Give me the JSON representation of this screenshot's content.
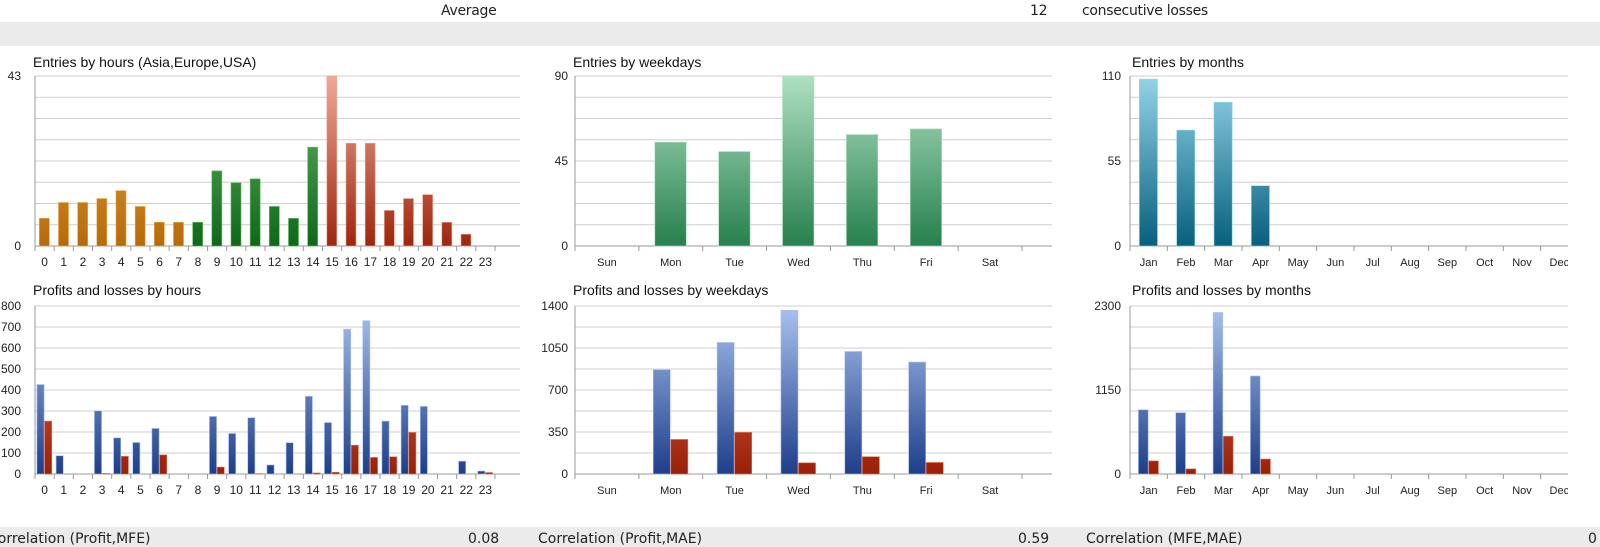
{
  "header": {
    "label": "Average",
    "value": "12",
    "suffix": "consecutive losses"
  },
  "footer": [
    {
      "label": "Correlation (Profit,MFE)",
      "value": "0.08"
    },
    {
      "label": "Correlation (Profit,MAE)",
      "value": "0.59"
    },
    {
      "label": "Correlation (MFE,MAE)",
      "value": "0"
    }
  ],
  "colors": {
    "orange": [
      "#e6ab4e",
      "#b86a08"
    ],
    "green": [
      "#6abb6a",
      "#0d6818"
    ],
    "red": [
      "#efa898",
      "#9e260c"
    ],
    "blue": [
      "#aac2ee",
      "#1d3e8a"
    ],
    "loss": [
      "#e27457",
      "#9a2008"
    ],
    "mint": [
      "#aee0c2",
      "#27804e"
    ],
    "teal": [
      "#94d4e8",
      "#06607e"
    ]
  },
  "chart_data": [
    {
      "id": "entries-hours",
      "type": "bar",
      "title": "Entries by hours (Asia,Europe,USA)",
      "categories": [
        "0",
        "1",
        "2",
        "3",
        "4",
        "5",
        "6",
        "7",
        "8",
        "9",
        "10",
        "11",
        "12",
        "13",
        "14",
        "15",
        "16",
        "17",
        "18",
        "19",
        "20",
        "21",
        "22",
        "23"
      ],
      "series": [
        {
          "name": "Entries",
          "values": [
            7,
            11,
            11,
            12,
            14,
            10,
            6,
            6,
            6,
            19,
            16,
            17,
            10,
            7,
            25,
            43,
            26,
            26,
            9,
            12,
            13,
            6,
            3,
            0
          ],
          "colors": [
            "orange",
            "orange",
            "orange",
            "orange",
            "orange",
            "orange",
            "orange",
            "orange",
            "green",
            "green",
            "green",
            "green",
            "green",
            "green",
            "green",
            "red",
            "red",
            "red",
            "red",
            "red",
            "red",
            "red",
            "red",
            "red"
          ]
        }
      ],
      "ylim": [
        0,
        43
      ],
      "yticks": [
        0,
        43
      ],
      "grid": true
    },
    {
      "id": "pl-hours",
      "type": "bar",
      "title": "Profits and losses by hours",
      "categories": [
        "0",
        "1",
        "2",
        "3",
        "4",
        "5",
        "6",
        "7",
        "8",
        "9",
        "10",
        "11",
        "12",
        "13",
        "14",
        "15",
        "16",
        "17",
        "18",
        "19",
        "20",
        "21",
        "22",
        "23"
      ],
      "series": [
        {
          "name": "Profits",
          "color": "blue",
          "values": [
            426,
            87,
            0,
            301,
            172,
            150,
            217,
            0,
            0,
            274,
            193,
            268,
            43,
            149,
            370,
            245,
            690,
            730,
            252,
            327,
            322,
            0,
            61,
            14
          ]
        },
        {
          "name": "Losses",
          "color": "loss",
          "values": [
            252,
            0,
            0,
            3,
            84,
            0,
            91,
            0,
            0,
            33,
            0,
            2,
            0,
            0,
            5,
            8,
            137,
            79,
            82,
            198,
            0,
            0,
            0,
            7
          ]
        }
      ],
      "ylim": [
        0,
        800
      ],
      "yticks": [
        0,
        100,
        200,
        300,
        400,
        500,
        600,
        700,
        800
      ],
      "grid": true
    },
    {
      "id": "entries-weekdays",
      "type": "bar",
      "title": "Entries by weekdays",
      "categories": [
        "Sun",
        "Mon",
        "Tue",
        "Wed",
        "Thu",
        "Fri",
        "Sat"
      ],
      "series": [
        {
          "name": "Entries",
          "color": "mint",
          "values": [
            0,
            55,
            50,
            90,
            59,
            62,
            0
          ]
        }
      ],
      "ylim": [
        0,
        90
      ],
      "yticks": [
        0,
        45,
        90
      ],
      "grid": true
    },
    {
      "id": "pl-weekdays",
      "type": "bar",
      "title": "Profits and losses by weekdays",
      "categories": [
        "Sun",
        "Mon",
        "Tue",
        "Wed",
        "Thu",
        "Fri",
        "Sat"
      ],
      "series": [
        {
          "name": "Profits",
          "color": "blue",
          "values": [
            0,
            869,
            1096,
            1365,
            1021,
            933,
            0
          ]
        },
        {
          "name": "Losses",
          "color": "loss",
          "values": [
            0,
            288,
            347,
            93,
            144,
            96,
            0
          ]
        }
      ],
      "ylim": [
        0,
        1400
      ],
      "yticks": [
        0,
        350,
        700,
        1050,
        1400
      ],
      "grid": true
    },
    {
      "id": "entries-months",
      "type": "bar",
      "title": "Entries by months",
      "categories": [
        "Jan",
        "Feb",
        "Mar",
        "Apr",
        "May",
        "Jun",
        "Jul",
        "Aug",
        "Sep",
        "Oct",
        "Nov",
        "Dec"
      ],
      "series": [
        {
          "name": "Entries",
          "color": "teal",
          "values": [
            108,
            75,
            93,
            39,
            0,
            0,
            0,
            0,
            0,
            0,
            0,
            0
          ]
        }
      ],
      "ylim": [
        0,
        110
      ],
      "yticks": [
        0,
        55,
        110
      ],
      "grid": true
    },
    {
      "id": "pl-months",
      "type": "bar",
      "title": "Profits and losses by months",
      "categories": [
        "Jan",
        "Feb",
        "Mar",
        "Apr",
        "May",
        "Jun",
        "Jul",
        "Aug",
        "Sep",
        "Oct",
        "Nov",
        "Dec"
      ],
      "series": [
        {
          "name": "Profits",
          "color": "blue",
          "values": [
            879,
            840,
            2212,
            1342,
            0,
            0,
            0,
            0,
            0,
            0,
            0,
            0
          ]
        },
        {
          "name": "Losses",
          "color": "loss",
          "values": [
            179,
            70,
            516,
            205,
            0,
            0,
            0,
            0,
            0,
            0,
            0,
            0
          ]
        }
      ],
      "ylim": [
        0,
        2300
      ],
      "yticks": [
        0,
        1150,
        2300
      ],
      "grid": true
    }
  ]
}
